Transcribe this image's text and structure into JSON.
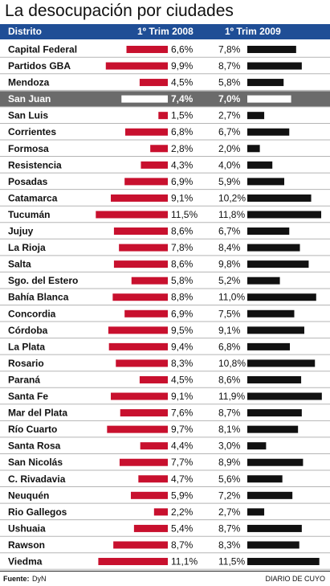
{
  "chart_data": {
    "type": "bar",
    "title": "La desocupación por ciudades",
    "column_headers": [
      "Distrito",
      "1º Trim 2008",
      "1º Trim 2009"
    ],
    "categories": [
      "Capital Federal",
      "Partidos GBA",
      "Mendoza",
      "San Juan",
      "San Luis",
      "Corrientes",
      "Formosa",
      "Resistencia",
      "Posadas",
      "Catamarca",
      "Tucumán",
      "Jujuy",
      "La Rioja",
      "Salta",
      "Sgo. del Estero",
      "Bahía Blanca",
      "Concordia",
      "Córdoba",
      "La Plata",
      "Rosario",
      "Paraná",
      "Santa Fe",
      "Mar del Plata",
      "Río Cuarto",
      "Santa Rosa",
      "San Nicolás",
      "C. Rivadavia",
      "Neuquén",
      "Rio Gallegos",
      "Ushuaia",
      "Rawson",
      "Viedma"
    ],
    "highlight": "San Juan",
    "series": [
      {
        "name": "1º Trim 2008",
        "color": "#c8102e",
        "values": [
          6.6,
          9.9,
          4.5,
          7.4,
          1.5,
          6.8,
          2.8,
          4.3,
          6.9,
          9.1,
          11.5,
          8.6,
          7.8,
          8.6,
          5.8,
          8.8,
          6.9,
          9.5,
          9.4,
          8.3,
          4.5,
          9.1,
          7.6,
          9.7,
          4.4,
          7.7,
          4.7,
          5.9,
          2.2,
          5.4,
          8.7,
          11.1
        ],
        "labels": [
          "6,6%",
          "9,9%",
          "4,5%",
          "7,4%",
          "1,5%",
          "6,8%",
          "2,8%",
          "4,3%",
          "6,9%",
          "9,1%",
          "11,5%",
          "8,6%",
          "7,8%",
          "8,6%",
          "5,8%",
          "8,8%",
          "6,9%",
          "9,5%",
          "9,4%",
          "8,3%",
          "4,5%",
          "9,1%",
          "7,6%",
          "9,7%",
          "4,4%",
          "7,7%",
          "4,7%",
          "5,9%",
          "2,2%",
          "5,4%",
          "8,7%",
          "11,1%"
        ]
      },
      {
        "name": "1º Trim 2009",
        "color": "#111111",
        "values": [
          7.8,
          8.7,
          5.8,
          7.0,
          2.7,
          6.7,
          2.0,
          4.0,
          5.9,
          10.2,
          11.8,
          6.7,
          8.4,
          9.8,
          5.2,
          11.0,
          7.5,
          9.1,
          6.8,
          10.8,
          8.6,
          11.9,
          8.7,
          8.1,
          3.0,
          8.9,
          5.6,
          7.2,
          2.7,
          8.7,
          8.3,
          11.5
        ],
        "labels": [
          "7,8%",
          "8,7%",
          "5,8%",
          "7,0%",
          "2,7%",
          "6,7%",
          "2,0%",
          "4,0%",
          "5,9%",
          "10,2%",
          "11,8%",
          "6,7%",
          "8,4%",
          "9,8%",
          "5,2%",
          "11,0%",
          "7,5%",
          "9,1%",
          "6,8%",
          "10,8%",
          "8,6%",
          "11,9%",
          "8,7%",
          "8,1%",
          "3,0%",
          "8,9%",
          "5,6%",
          "7,2%",
          "2,7%",
          "8,7%",
          "8,3%",
          "11,5%"
        ]
      }
    ]
  },
  "colors": {
    "header_bg": "#1f4e96",
    "highlight_row_bg": "#6b6b6b",
    "row_divider": "#b5b5b5"
  },
  "footer": {
    "source_label": "Fuente:",
    "source_value": "DyN",
    "publisher": "DIARIO DE CUYO"
  }
}
